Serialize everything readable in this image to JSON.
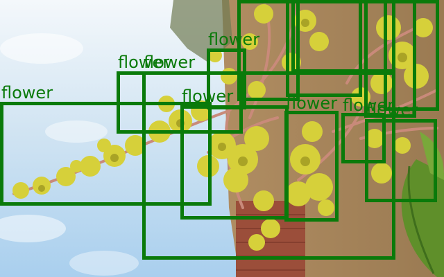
{
  "image": {
    "subject": "mango tree flowering panicles",
    "detection_color": "#0a7a0a"
  },
  "detections": [
    {
      "label": "flower"
    },
    {
      "label": "flower"
    },
    {
      "label": "flower"
    },
    {
      "label": "flower"
    },
    {
      "label": "flower"
    },
    {
      "label": "flower"
    },
    {
      "label": "flower"
    },
    {
      "label": "flower"
    },
    {
      "label": "flower"
    },
    {
      "label": "flower"
    },
    {
      "label": "flower"
    },
    {
      "label": "flower"
    },
    {
      "label": "flower"
    }
  ]
}
